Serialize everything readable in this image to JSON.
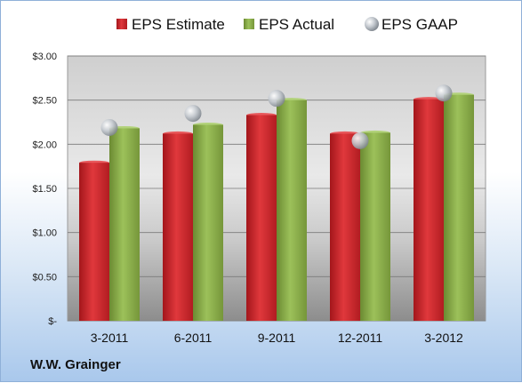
{
  "company_label": "W.W. Grainger",
  "chart_data": {
    "type": "bar",
    "title": "",
    "xlabel": "",
    "ylabel": "",
    "categories": [
      "3-2011",
      "6-2011",
      "9-2011",
      "12-2011",
      "3-2012"
    ],
    "ylim": [
      0,
      3.0
    ],
    "y_ticks": [
      0,
      0.5,
      1.0,
      1.5,
      2.0,
      2.5,
      3.0
    ],
    "y_tick_labels": [
      "$-",
      "$0.50",
      "$1.00",
      "$1.50",
      "$2.00",
      "$2.50",
      "$3.00"
    ],
    "grid": true,
    "legend_position": "top",
    "series": [
      {
        "name": "EPS Estimate",
        "kind": "bar",
        "color": "#d42a2f",
        "values": [
          1.79,
          2.12,
          2.33,
          2.12,
          2.51
        ]
      },
      {
        "name": "EPS Actual",
        "kind": "bar",
        "color": "#8cb04a",
        "values": [
          2.18,
          2.22,
          2.5,
          2.13,
          2.56
        ]
      },
      {
        "name": "EPS GAAP",
        "kind": "marker",
        "color": "#b8bec6",
        "values": [
          2.19,
          2.35,
          2.52,
          2.04,
          2.58
        ]
      }
    ]
  }
}
